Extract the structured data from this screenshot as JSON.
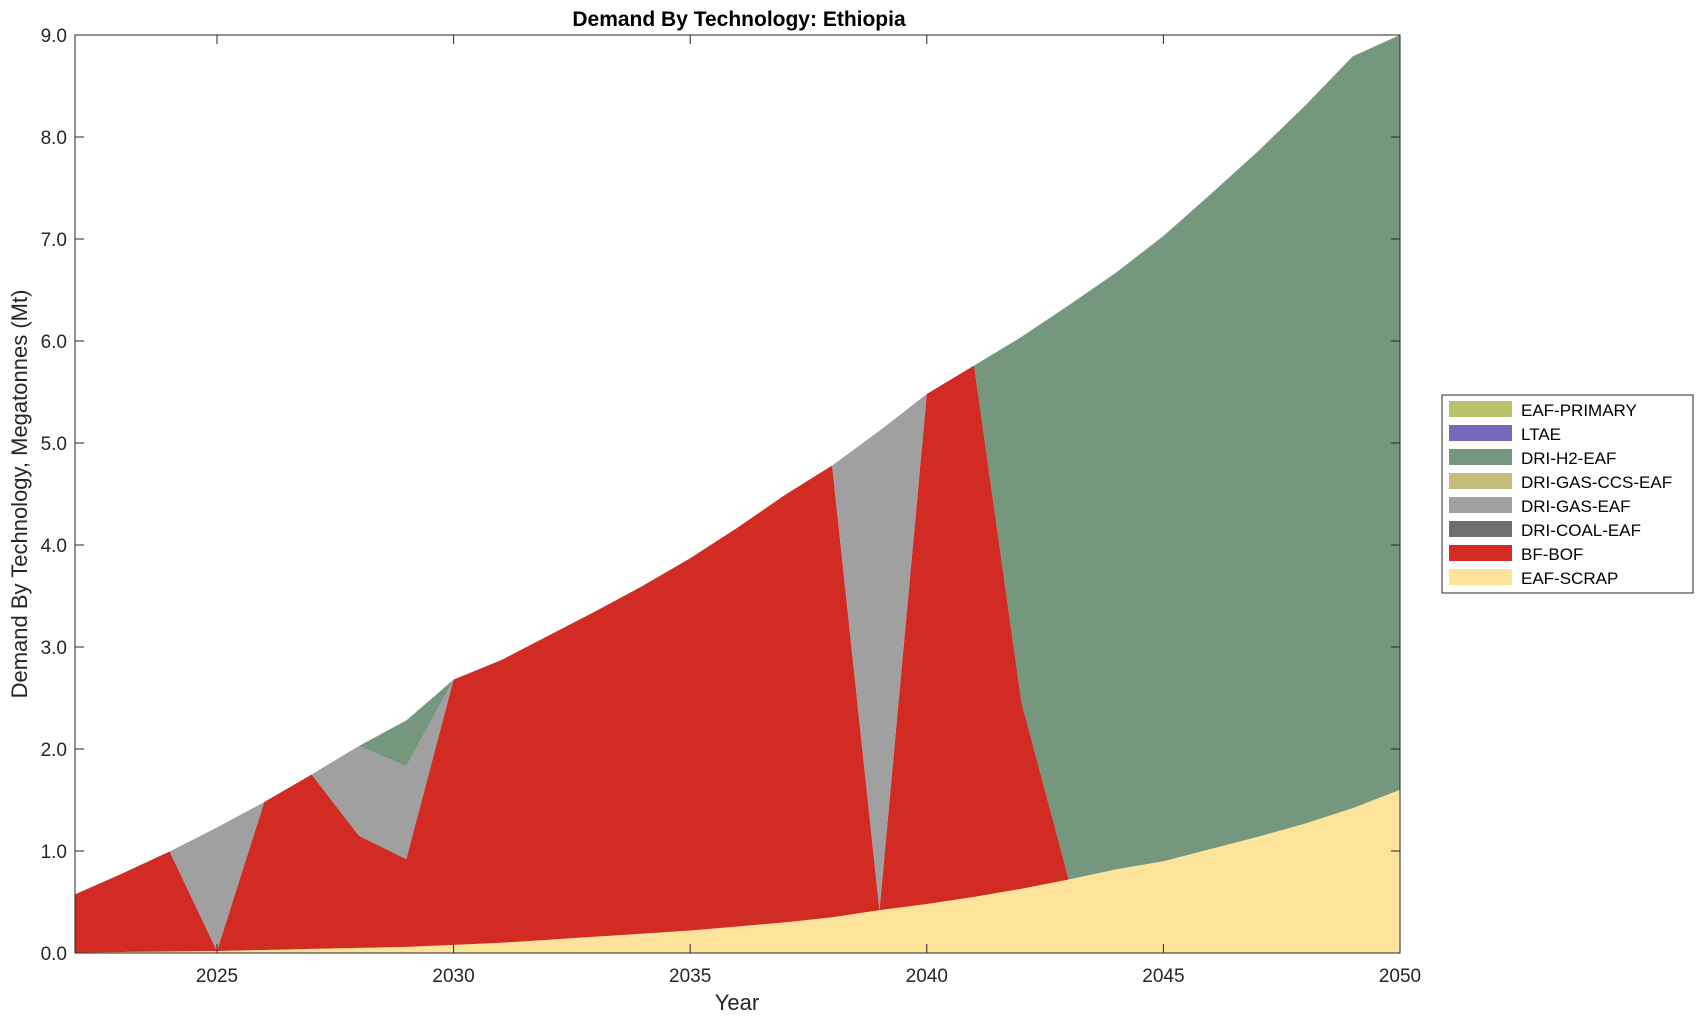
{
  "chart_data": {
    "type": "area",
    "stacked": true,
    "title": "Demand By Technology: Ethiopia",
    "xlabel": "Year",
    "ylabel": "Demand By Technology, Megatonnes (Mt)",
    "xlim": [
      2022,
      2050
    ],
    "ylim": [
      0,
      9
    ],
    "xticks": [
      2025,
      2030,
      2035,
      2040,
      2045,
      2050
    ],
    "yticks": [
      "0.0",
      "1.0",
      "2.0",
      "3.0",
      "4.0",
      "5.0",
      "6.0",
      "7.0",
      "8.0",
      "9.0"
    ],
    "grid": false,
    "legend_position": "right",
    "x": [
      2022,
      2023,
      2024,
      2025,
      2026,
      2027,
      2028,
      2029,
      2030,
      2031,
      2032,
      2033,
      2034,
      2035,
      2036,
      2037,
      2038,
      2039,
      2040,
      2041,
      2042,
      2043,
      2044,
      2045,
      2046,
      2047,
      2048,
      2049,
      2050
    ],
    "legend_order": [
      "EAF-PRIMARY",
      "LTAE",
      "DRI-H2-EAF",
      "DRI-GAS-CCS-EAF",
      "DRI-GAS-EAF",
      "DRI-COAL-EAF",
      "BF-BOF",
      "EAF-SCRAP"
    ],
    "series": [
      {
        "name": "EAF-SCRAP",
        "color": "#FDE49A",
        "values": [
          0.005,
          0.01,
          0.015,
          0.02,
          0.03,
          0.04,
          0.05,
          0.06,
          0.08,
          0.1,
          0.13,
          0.16,
          0.19,
          0.22,
          0.26,
          0.3,
          0.35,
          0.42,
          0.48,
          0.55,
          0.63,
          0.72,
          0.82,
          0.9,
          1.02,
          1.14,
          1.27,
          1.42,
          1.6
        ]
      },
      {
        "name": "BF-BOF",
        "color": "#D22B24",
        "values": [
          0.57,
          0.77,
          0.98,
          0.0,
          1.45,
          1.71,
          1.1,
          0.86,
          2.6,
          2.77,
          2.98,
          3.19,
          3.41,
          3.65,
          3.91,
          4.19,
          4.43,
          0.0,
          5.0,
          5.21,
          1.83,
          0.0,
          0.0,
          0.0,
          0.0,
          0.0,
          0.0,
          0.0,
          0.0
        ]
      },
      {
        "name": "DRI-COAL-EAF",
        "color": "#6E6E6E",
        "values": [
          0,
          0,
          0,
          0,
          0,
          0,
          0,
          0,
          0,
          0,
          0,
          0,
          0,
          0,
          0,
          0,
          0,
          0,
          0,
          0,
          0,
          0,
          0,
          0,
          0,
          0,
          0,
          0,
          0
        ]
      },
      {
        "name": "DRI-GAS-EAF",
        "color": "#A0A0A0",
        "values": [
          0.0,
          0.0,
          0.0,
          1.21,
          0.0,
          0.0,
          0.88,
          0.91,
          0.0,
          0.0,
          0.0,
          0.0,
          0.0,
          0.0,
          0.0,
          0.0,
          0.0,
          4.7,
          0.0,
          0.0,
          0.0,
          0.0,
          0.0,
          0.0,
          0.0,
          0.0,
          0.0,
          0.0,
          0.0
        ]
      },
      {
        "name": "DRI-GAS-CCS-EAF",
        "color": "#C6BC7C",
        "values": [
          0,
          0,
          0,
          0,
          0,
          0,
          0,
          0,
          0,
          0,
          0,
          0,
          0,
          0,
          0,
          0,
          0,
          0,
          0,
          0,
          0,
          0,
          0,
          0,
          0,
          0,
          0,
          0,
          0
        ]
      },
      {
        "name": "DRI-H2-EAF",
        "color": "#75977D",
        "values": [
          0.0,
          0.0,
          0.0,
          0.0,
          0.0,
          0.0,
          0.0,
          0.45,
          0.0,
          0.0,
          0.0,
          0.0,
          0.0,
          0.0,
          0.0,
          0.0,
          0.0,
          0.0,
          0.0,
          0.0,
          3.58,
          5.63,
          5.85,
          6.13,
          6.42,
          6.72,
          7.04,
          7.37,
          7.4
        ]
      },
      {
        "name": "LTAE",
        "color": "#7667BB",
        "values": [
          0,
          0,
          0,
          0,
          0,
          0,
          0,
          0,
          0,
          0,
          0,
          0,
          0,
          0,
          0,
          0,
          0,
          0,
          0,
          0,
          0,
          0,
          0,
          0,
          0,
          0,
          0,
          0,
          0
        ]
      },
      {
        "name": "EAF-PRIMARY",
        "color": "#B9C26A",
        "values": [
          0,
          0,
          0,
          0,
          0,
          0,
          0,
          0,
          0,
          0,
          0,
          0,
          0,
          0,
          0,
          0,
          0,
          0,
          0,
          0,
          0,
          0,
          0,
          0,
          0,
          0,
          0,
          0,
          0
        ]
      }
    ]
  }
}
